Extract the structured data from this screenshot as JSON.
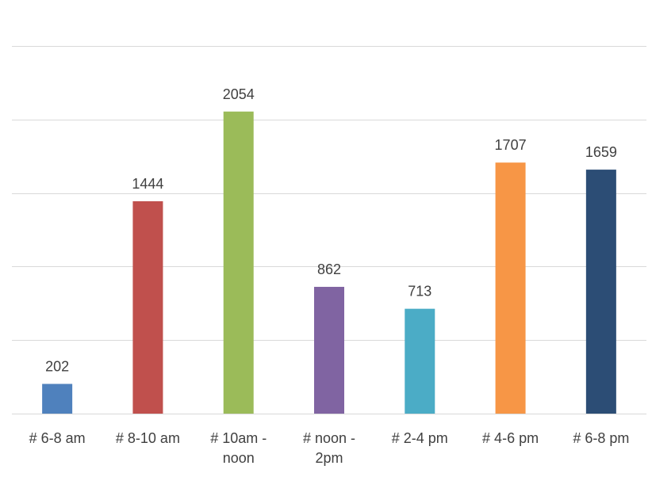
{
  "chart_data": {
    "type": "bar",
    "title": "",
    "xlabel": "",
    "ylabel": "",
    "categories": [
      [
        "# 6-8 am"
      ],
      [
        "# 8-10 am"
      ],
      [
        "# 10am -",
        "noon"
      ],
      [
        "# noon -",
        "2pm"
      ],
      [
        "# 2-4 pm"
      ],
      [
        "# 4-6 pm"
      ],
      [
        "# 6-8 pm"
      ]
    ],
    "values": [
      202,
      1444,
      2054,
      862,
      713,
      1707,
      1659
    ],
    "colors": [
      "#4F81BD",
      "#C0504D",
      "#9BBB59",
      "#8064A2",
      "#4BACC6",
      "#F79646",
      "#2C4D75"
    ],
    "ylim": [
      0,
      2500
    ],
    "y_grid_step": 500,
    "grid": true,
    "y_tick_labels_shown": false,
    "data_labels": true,
    "legend": "none"
  }
}
